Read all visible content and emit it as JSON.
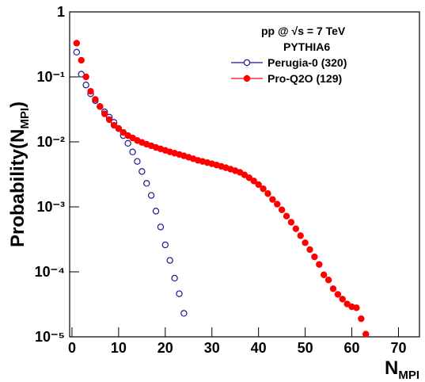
{
  "chart_data": {
    "type": "scatter",
    "legend_header": [
      "pp @ √s = 7 TeV",
      "PYTHIA6"
    ],
    "x_label": {
      "main": "N",
      "sub": "MPI"
    },
    "y_label": {
      "main": "Probability(N",
      "sub": "MPI",
      "end": ")"
    },
    "log_y": true,
    "legend": "top-right",
    "xlim": [
      -0.5,
      74.5
    ],
    "xticks": [
      0,
      10,
      20,
      30,
      40,
      50,
      60,
      70
    ],
    "ylim": [
      1e-05,
      1
    ],
    "yticks": [
      {
        "value": 1e-05,
        "label": "10⁻⁵"
      },
      {
        "value": 0.0001,
        "label": "10⁻⁴"
      },
      {
        "value": 0.001,
        "label": "10⁻³"
      },
      {
        "value": 0.01,
        "label": "10⁻²"
      },
      {
        "value": 0.1,
        "label": "10⁻¹"
      },
      1
    ],
    "series": [
      {
        "name": "Perugia-0 (320)",
        "color": "#1a1a8c",
        "marker": "open-circle",
        "x": [
          1,
          2,
          3,
          4,
          5,
          6,
          7,
          8,
          9,
          10,
          11,
          12,
          13,
          14,
          15,
          16,
          17,
          18,
          19,
          20,
          21,
          22,
          23,
          24
        ],
        "values": [
          0.24,
          0.11,
          0.075,
          0.055,
          0.043,
          0.035,
          0.029,
          0.024,
          0.02,
          0.016,
          0.0125,
          0.0095,
          0.007,
          0.005,
          0.0035,
          0.0023,
          0.0015,
          0.00086,
          0.00049,
          0.00026,
          0.00015,
          8e-05,
          4.6e-05,
          2.3e-05
        ]
      },
      {
        "name": "Pro-Q2O (129)",
        "color": "#ff0000",
        "marker": "filled-circle",
        "x": [
          1,
          2,
          3,
          4,
          5,
          6,
          7,
          8,
          9,
          10,
          11,
          12,
          13,
          14,
          15,
          16,
          17,
          18,
          19,
          20,
          21,
          22,
          23,
          24,
          25,
          26,
          27,
          28,
          29,
          30,
          31,
          32,
          33,
          34,
          35,
          36,
          37,
          38,
          39,
          40,
          41,
          42,
          43,
          44,
          45,
          46,
          47,
          48,
          49,
          50,
          51,
          52,
          53,
          54,
          55,
          56,
          57,
          58,
          59,
          60,
          61,
          62,
          63
        ],
        "values": [
          0.33,
          0.18,
          0.1,
          0.06,
          0.045,
          0.035,
          0.027,
          0.022,
          0.018,
          0.016,
          0.014,
          0.0125,
          0.0115,
          0.0105,
          0.0098,
          0.0092,
          0.0087,
          0.0082,
          0.0078,
          0.0074,
          0.007,
          0.0067,
          0.0064,
          0.0061,
          0.0058,
          0.0055,
          0.0052,
          0.005,
          0.0048,
          0.0046,
          0.0044,
          0.0042,
          0.004,
          0.0038,
          0.0036,
          0.0034,
          0.0031,
          0.0028,
          0.0025,
          0.0022,
          0.0019,
          0.0016,
          0.0013,
          0.0011,
          0.0009,
          0.00072,
          0.00058,
          0.00046,
          0.00036,
          0.00028,
          0.00022,
          0.00017,
          0.00013,
          9e-05,
          7.5e-05,
          5.5e-05,
          4.5e-05,
          3.8e-05,
          3.2e-05,
          2.9e-05,
          2.8e-05,
          1.9e-05,
          1.1e-05
        ]
      }
    ]
  }
}
